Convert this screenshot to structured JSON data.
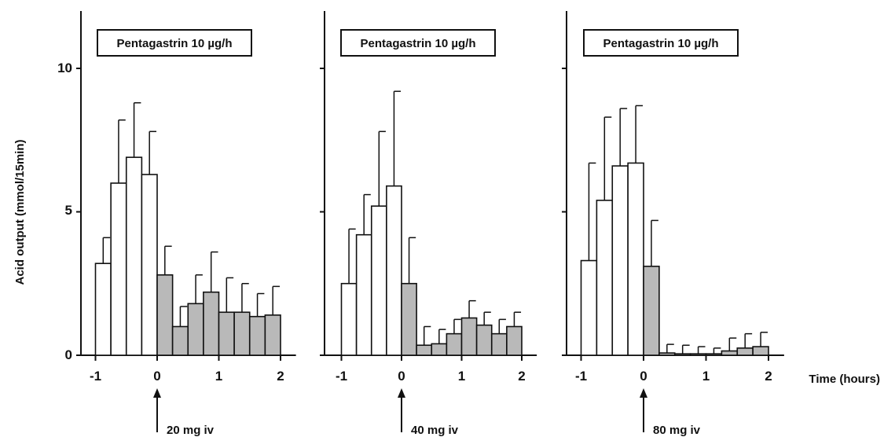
{
  "chart_data": {
    "type": "bar",
    "ylabel": "Acid output (mmol/15min)",
    "xlabel": "Time (hours)",
    "ylim": [
      0,
      12
    ],
    "yticks": [
      "0",
      "5",
      "10"
    ],
    "xticks": [
      "-1",
      "0",
      "1",
      "2"
    ],
    "bar_colors": {
      "baseline": "#ffffff",
      "treated": "#b9b9b9"
    },
    "panels": [
      {
        "title": "Pentagastrin 10 µg/h",
        "annotation": "20 mg iv",
        "baseline": {
          "x": [
            -0.875,
            -0.625,
            -0.375,
            -0.125
          ],
          "values": [
            3.2,
            6.0,
            6.9,
            6.3
          ],
          "error": [
            0.9,
            2.2,
            1.9,
            1.5
          ]
        },
        "treated": {
          "x": [
            0.125,
            0.375,
            0.625,
            0.875,
            1.125,
            1.375,
            1.625,
            1.875
          ],
          "values": [
            2.8,
            1.0,
            1.8,
            2.2,
            1.5,
            1.5,
            1.35,
            1.4
          ],
          "error": [
            1.0,
            0.7,
            1.0,
            1.4,
            1.2,
            1.0,
            0.8,
            1.0
          ]
        }
      },
      {
        "title": "Pentagastrin 10 µg/h",
        "annotation": "40 mg iv",
        "baseline": {
          "x": [
            -0.875,
            -0.625,
            -0.375,
            -0.125
          ],
          "values": [
            2.5,
            4.2,
            5.2,
            5.9
          ],
          "error": [
            1.9,
            1.4,
            2.6,
            3.3
          ]
        },
        "treated": {
          "x": [
            0.125,
            0.375,
            0.625,
            0.875,
            1.125,
            1.375,
            1.625,
            1.875
          ],
          "values": [
            2.5,
            0.35,
            0.4,
            0.75,
            1.3,
            1.05,
            0.75,
            1.0
          ],
          "error": [
            1.6,
            0.65,
            0.5,
            0.5,
            0.6,
            0.45,
            0.5,
            0.5
          ]
        }
      },
      {
        "title": "Pentagastrin 10 µg/h",
        "annotation": "80 mg iv",
        "baseline": {
          "x": [
            -0.875,
            -0.625,
            -0.375,
            -0.125
          ],
          "values": [
            3.3,
            5.4,
            6.6,
            6.7
          ],
          "error": [
            3.4,
            2.9,
            2.0,
            2.0
          ]
        },
        "treated": {
          "x": [
            0.125,
            0.375,
            0.625,
            0.875,
            1.125,
            1.375,
            1.625,
            1.875
          ],
          "values": [
            3.1,
            0.08,
            0.05,
            0.05,
            0.05,
            0.15,
            0.25,
            0.3
          ],
          "error": [
            1.6,
            0.3,
            0.3,
            0.25,
            0.2,
            0.45,
            0.5,
            0.5
          ]
        }
      }
    ]
  }
}
